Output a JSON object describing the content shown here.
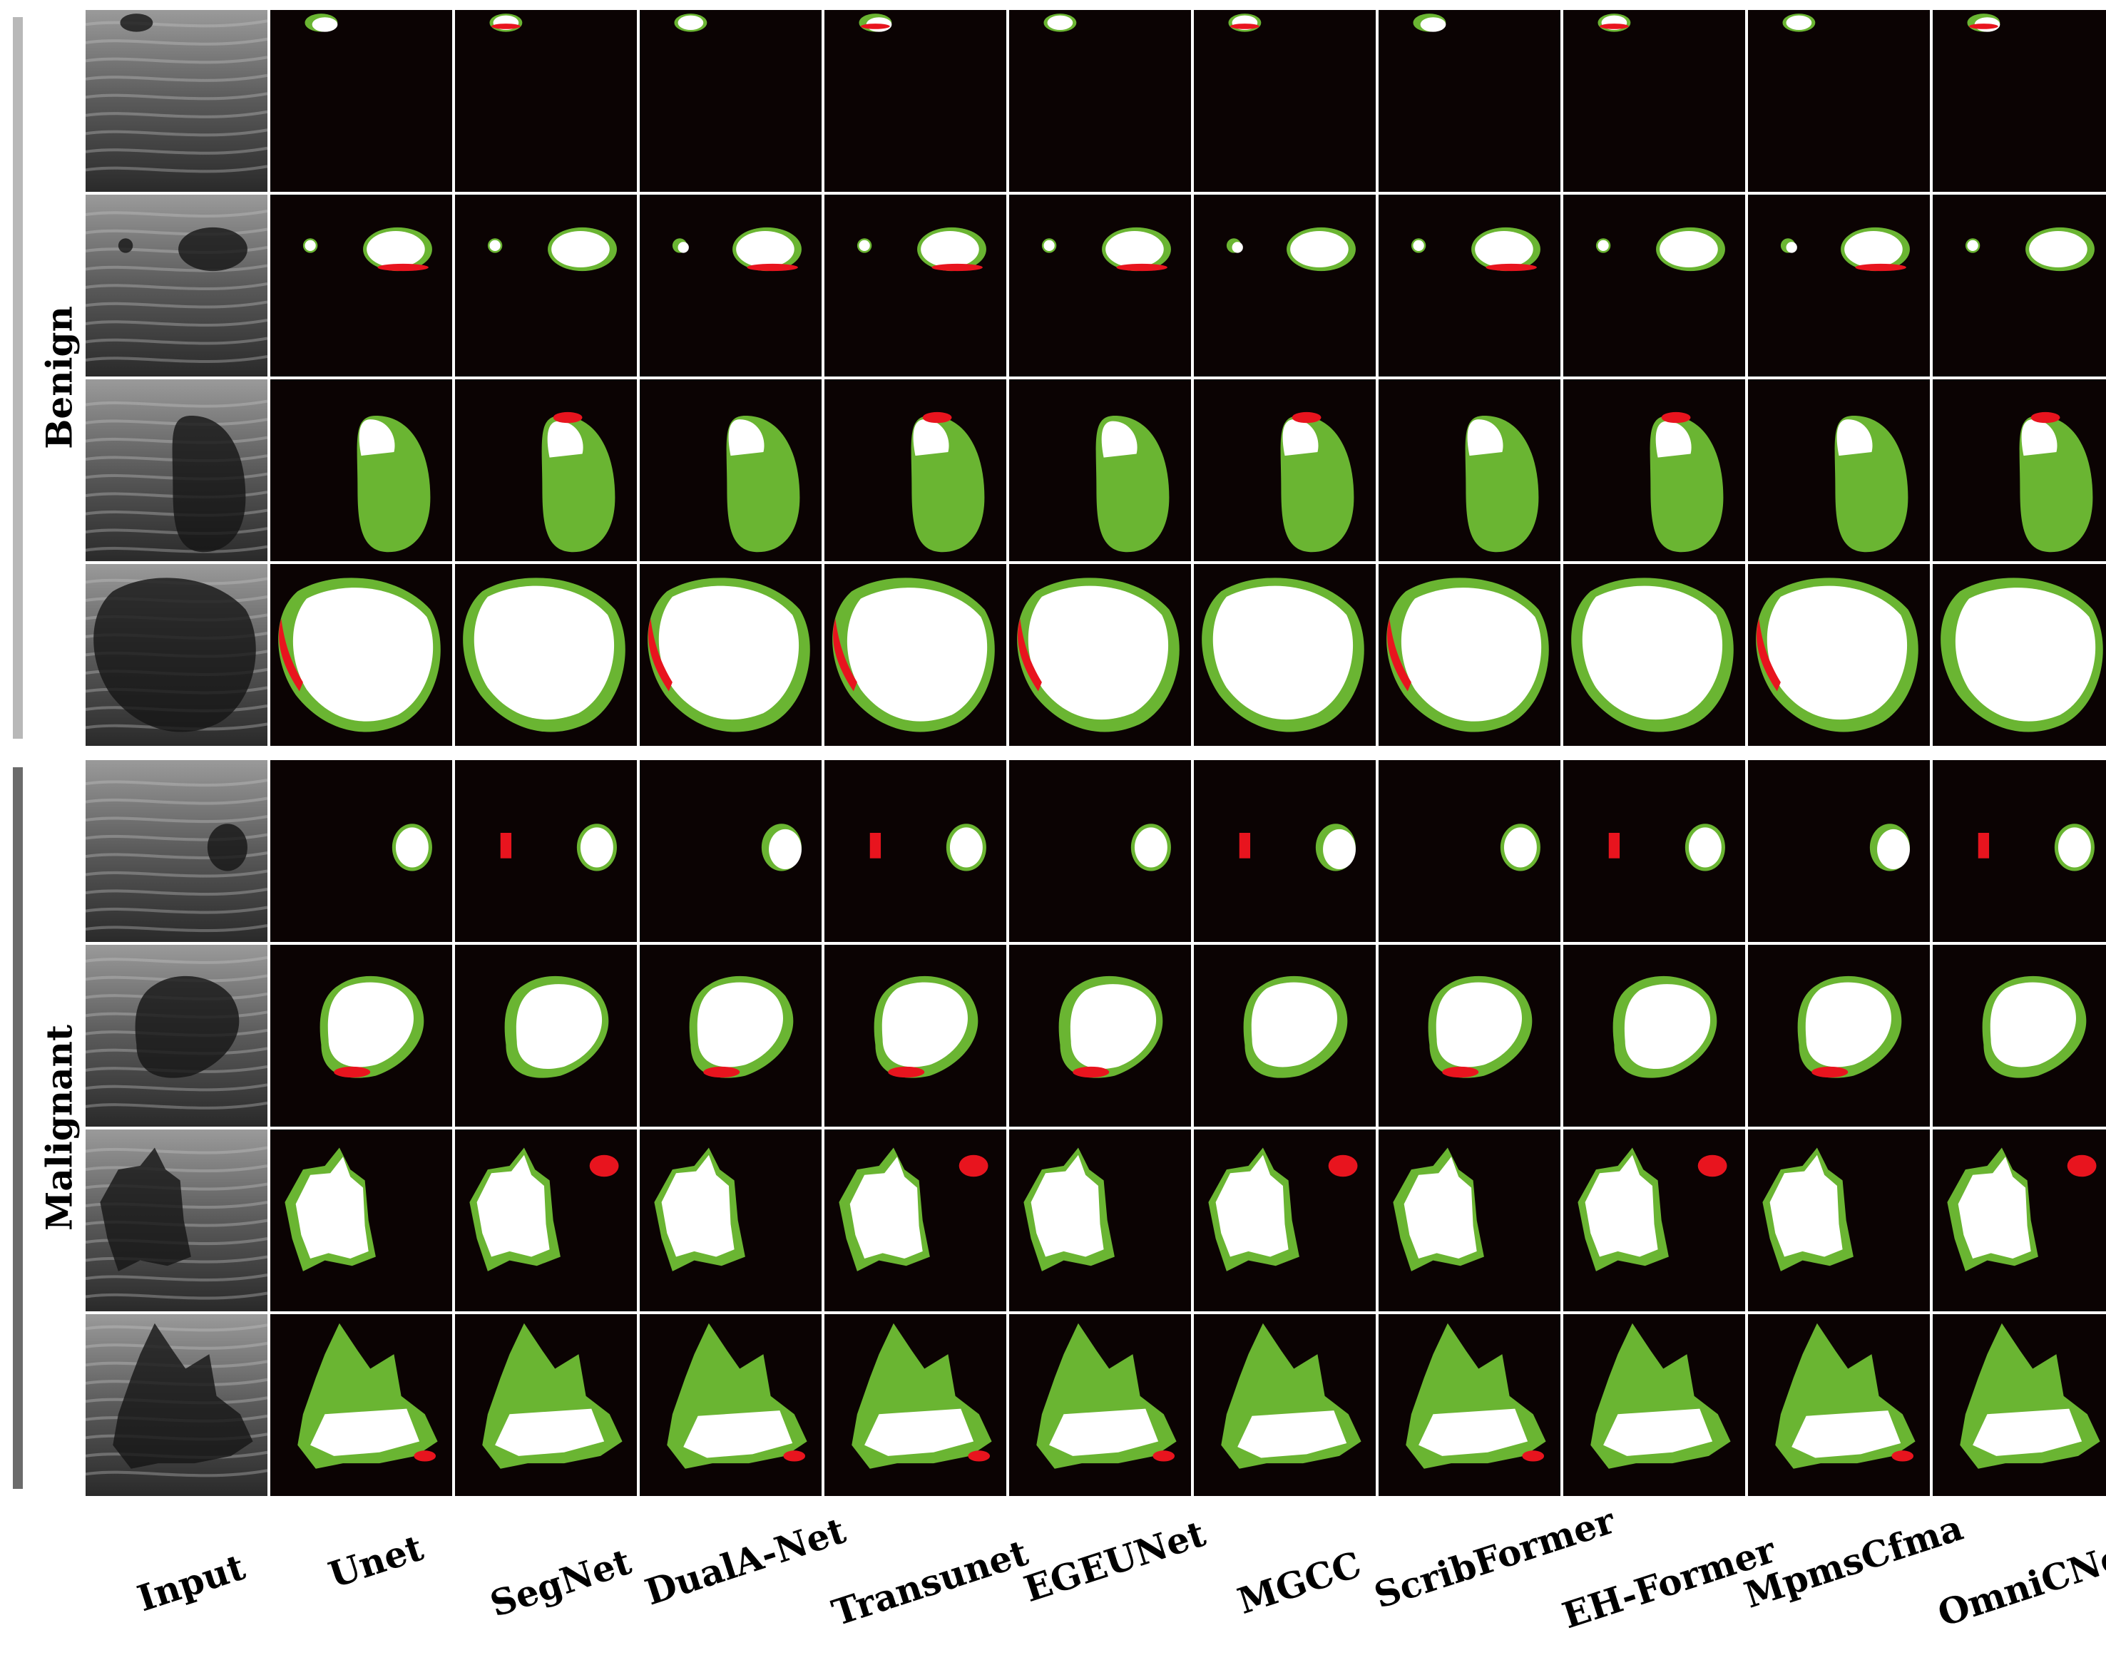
{
  "groups": [
    {
      "label": "Benign",
      "color": "#b8b8b8"
    },
    {
      "label": "Malignant",
      "color": "#6b6b6b"
    }
  ],
  "columns": [
    "Input",
    "Unet",
    "SegNet",
    "DualA-Net",
    "Transunet",
    "EGEUNet",
    "MGCC",
    "ScribFormer",
    "EH-Former",
    "MpmsCfma",
    "OmniCNet"
  ],
  "legend_colors": {
    "overlap": "#ffffff",
    "false_negative": "#6ab532",
    "false_positive": "#e8141e",
    "background": "#0b0303"
  },
  "rows": [
    {
      "group": "Benign",
      "shape": "small-top-ellipse"
    },
    {
      "group": "Benign",
      "shape": "two-ellipses"
    },
    {
      "group": "Benign",
      "shape": "tall-oval"
    },
    {
      "group": "Benign",
      "shape": "large-blob"
    },
    {
      "group": "Malignant",
      "shape": "small-round-right"
    },
    {
      "group": "Malignant",
      "shape": "heart-blob"
    },
    {
      "group": "Malignant",
      "shape": "irregular-left"
    },
    {
      "group": "Malignant",
      "shape": "mountain"
    }
  ]
}
